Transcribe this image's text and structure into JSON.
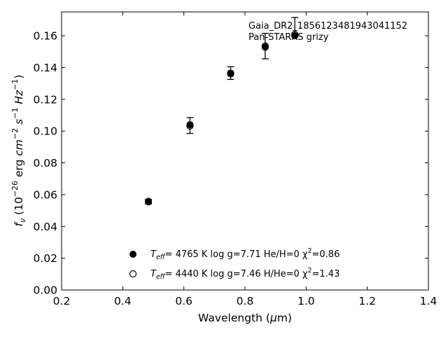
{
  "chart_data": {
    "type": "scatter",
    "title": "",
    "xlabel": "Wavelength (μm)",
    "ylabel": "f_ν (10^-26 erg cm^-2 s^-1 Hz^-1)",
    "xlim": [
      0.2,
      1.4
    ],
    "ylim": [
      0.0,
      0.175
    ],
    "x_ticks": [
      0.2,
      0.4,
      0.6,
      0.8,
      1.0,
      1.2,
      1.4
    ],
    "x_tick_labels": [
      "0.2",
      "0.4",
      "0.6",
      "0.8",
      "1.0",
      "1.2",
      "1.4"
    ],
    "y_ticks": [
      0.0,
      0.02,
      0.04,
      0.06,
      0.08,
      0.1,
      0.12,
      0.14,
      0.16
    ],
    "y_tick_labels": [
      "0.00",
      "0.02",
      "0.04",
      "0.06",
      "0.08",
      "0.10",
      "0.12",
      "0.14",
      "0.16"
    ],
    "grid": false,
    "legend_position": "lower-left",
    "annotations": [
      "Gaia_DR2_1856123481943041152",
      "Pan-STARRS grizy"
    ],
    "observed": {
      "x": [
        0.484,
        0.62,
        0.753,
        0.866,
        0.963
      ],
      "y": [
        0.0556,
        0.1035,
        0.1365,
        0.1535,
        0.1655
      ],
      "yerr": [
        0.0014,
        0.005,
        0.004,
        0.008,
        0.006
      ]
    },
    "series": [
      {
        "name": "T_eff = 4765 K  log g=7.71  He/H=0  χ²=0.86",
        "marker": "filled-circle",
        "x": [
          0.484,
          0.62,
          0.753,
          0.866,
          0.963
        ],
        "y": [
          0.0558,
          0.104,
          0.1365,
          0.1528,
          0.16
        ]
      },
      {
        "name": "T_eff = 4440 K  log g=7.46  H/He=0  χ²=1.43",
        "marker": "open-circle",
        "x": [
          0.484,
          0.62,
          0.753,
          0.866,
          0.963
        ],
        "y": [
          0.0555,
          0.1032,
          0.136,
          0.1535,
          0.1608
        ]
      }
    ],
    "colors": {
      "axis": "#000000",
      "marker": "#000000",
      "background": "#ffffff"
    }
  },
  "legend": {
    "entries": [
      {
        "teff_symbol": "T",
        "teff_sub": "eff",
        "rest": "=  4765 K  log g=7.71  He/H=0  χ",
        "chi_sup": "2",
        "chi_val": "=0.86"
      },
      {
        "teff_symbol": "T",
        "teff_sub": "eff",
        "rest": "=  4440 K  log g=7.46  H/He=0  χ",
        "chi_sup": "2",
        "chi_val": "=1.43"
      }
    ]
  },
  "axis_label_parts": {
    "x_main": "Wavelength (",
    "x_mu": "μ",
    "x_unit": "m)",
    "y_f": "f",
    "y_nu": "ν",
    "y_open": " (10",
    "y_exp1": "−26",
    "y_erg": " erg ",
    "y_cm": "cm",
    "y_exp2": "−2",
    "y_s": " s",
    "y_exp3": "−1",
    "y_hz": " Hz",
    "y_exp4": "−1",
    "y_close": ")"
  }
}
